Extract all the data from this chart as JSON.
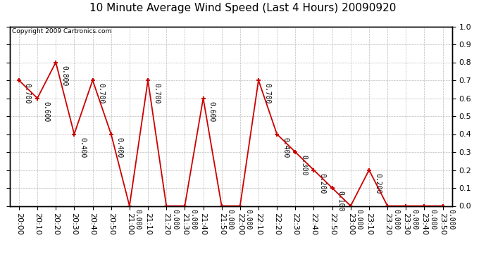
{
  "title": "10 Minute Average Wind Speed (Last 4 Hours) 20090920",
  "copyright": "Copyright 2009 Cartronics.com",
  "times": [
    "20:00",
    "20:10",
    "20:20",
    "20:30",
    "20:40",
    "20:50",
    "21:00",
    "21:10",
    "21:20",
    "21:30",
    "21:40",
    "21:50",
    "22:00",
    "22:10",
    "22:20",
    "22:30",
    "22:40",
    "22:50",
    "23:00",
    "23:10",
    "23:20",
    "23:30",
    "23:40",
    "23:50"
  ],
  "values": [
    0.7,
    0.6,
    0.8,
    0.4,
    0.7,
    0.4,
    0.0,
    0.7,
    0.0,
    0.0,
    0.6,
    0.0,
    0.0,
    0.7,
    0.4,
    0.3,
    0.2,
    0.1,
    0.0,
    0.2,
    0.0,
    0.0,
    0.0,
    0.0
  ],
  "line_color": "#cc0000",
  "marker_color": "#cc0000",
  "grid_color": "#bbbbbb",
  "bg_color": "#ffffff",
  "title_fontsize": 11,
  "label_fontsize": 7,
  "copyright_fontsize": 6.5,
  "tick_fontsize": 8,
  "ylim": [
    0.0,
    1.0
  ],
  "yticks_right": [
    0.0,
    0.1,
    0.2,
    0.3,
    0.4,
    0.5,
    0.6,
    0.7,
    0.8,
    0.9,
    1.0
  ]
}
